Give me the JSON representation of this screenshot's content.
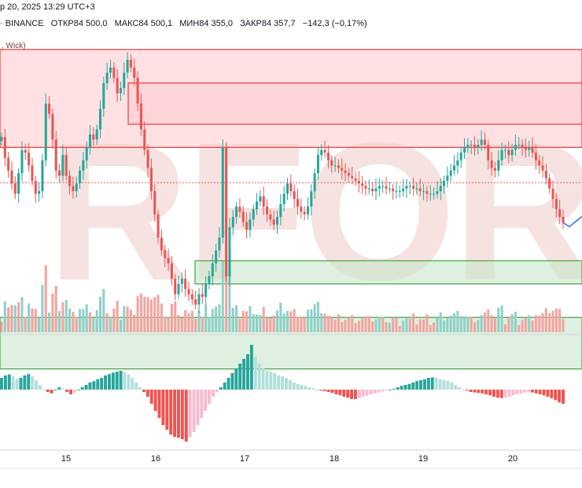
{
  "header": {
    "datetime": "р 20, 2025 13:29 UTC+3",
    "exchange": "· BINANCE",
    "open": "ОТКР84 500,0",
    "high": "МАКС84 500,1",
    "low": "МИН84 355,0",
    "close": "ЗАКР84 357,7",
    "change": "−142,3 (−0,17%)"
  },
  "zone_label": ", Wick)",
  "watermark": "RFOREX.c",
  "colors": {
    "up": "#26a69a",
    "down": "#ef5350",
    "up_vol": "#8fd0c8",
    "down_vol": "#f4a3a1",
    "supply_fill": "#ffcdd2",
    "supply_line": "#e53935",
    "demand_fill": "#c8e6c9",
    "demand_line": "#43a047",
    "projection": "#2962ff",
    "osc_light_down": "#f8bbd0",
    "osc_light_up": "#b2dfdb"
  },
  "chart_data": {
    "type": "candlestick",
    "x_tick_labels": [
      "15",
      "16",
      "17",
      "18",
      "19",
      "20"
    ],
    "last_price": 84357.7,
    "price_ylim": [
      84000,
      85100
    ],
    "closes": [
      84690,
      84610,
      84560,
      84510,
      84470,
      84550,
      84640,
      84630,
      84580,
      84520,
      84470,
      84480,
      84600,
      84820,
      84780,
      84680,
      84560,
      84540,
      84620,
      84540,
      84500,
      84480,
      84510,
      84560,
      84600,
      84650,
      84700,
      84680,
      84720,
      84800,
      84900,
      84940,
      84960,
      84920,
      84860,
      84880,
      84940,
      84990,
      84960,
      84920,
      84820,
      84720,
      84640,
      84570,
      84480,
      84390,
      84300,
      84250,
      84220,
      84200,
      84140,
      84080,
      84120,
      84140,
      84100,
      84080,
      84060,
      84040,
      84080,
      84070,
      84120,
      84150,
      84200,
      84250,
      84300,
      84650,
      84150,
      84340,
      84380,
      84420,
      84400,
      84360,
      84330,
      84370,
      84410,
      84440,
      84460,
      84420,
      84390,
      84370,
      84350,
      84380,
      84430,
      84470,
      84510,
      84480,
      84450,
      84420,
      84400,
      84390,
      84420,
      84480,
      84550,
      84620,
      84640,
      84630,
      84600,
      84580,
      84580,
      84570,
      84560,
      84550,
      84540,
      84530,
      84520,
      84510,
      84500,
      84490,
      84490,
      84480,
      84490,
      84500,
      84500,
      84490,
      84490,
      84480,
      84480,
      84480,
      84490,
      84500,
      84500,
      84490,
      84490,
      84480,
      84480,
      84470,
      84470,
      84470,
      84480,
      84500,
      84520,
      84540,
      84560,
      84580,
      84600,
      84630,
      84650,
      84660,
      84660,
      84650,
      84660,
      84680,
      84660,
      84600,
      84570,
      84560,
      84600,
      84640,
      84640,
      84620,
      84640,
      84660,
      84660,
      84650,
      84640,
      84650,
      84630,
      84600,
      84580,
      84560,
      84530,
      84490,
      84450,
      84410,
      84380,
      84357.7
    ],
    "volume_color_up": [
      0,
      1,
      0,
      0,
      1,
      0,
      1,
      0,
      1,
      0,
      0,
      1,
      1,
      0,
      1,
      0,
      0,
      1,
      0,
      1,
      1,
      0,
      0,
      1,
      1,
      1,
      0,
      1,
      1,
      1,
      1,
      0,
      1,
      0,
      0,
      1,
      1,
      0,
      0,
      0,
      0,
      0,
      0,
      0,
      0,
      0,
      0,
      0,
      0,
      0,
      0,
      0,
      0,
      0,
      0,
      0,
      0,
      0,
      1,
      0,
      1,
      1,
      1,
      1,
      1,
      1,
      0,
      1,
      1,
      1,
      0,
      0,
      0,
      1,
      1,
      1,
      1,
      0,
      0,
      0,
      0,
      1,
      1,
      1,
      1,
      0,
      0,
      0,
      0,
      0,
      1,
      1,
      1,
      1,
      1,
      0,
      0,
      0,
      0,
      0,
      0,
      0,
      0,
      0,
      0,
      0,
      0,
      0,
      0,
      0,
      1,
      1,
      0,
      0,
      1,
      0,
      0,
      0,
      1,
      1,
      0,
      0,
      0,
      0,
      0,
      0,
      0,
      0,
      1,
      1,
      1,
      1,
      1,
      1,
      1,
      1,
      1,
      1,
      0,
      0,
      1,
      1,
      0,
      0,
      0,
      0,
      1,
      1,
      0,
      0,
      1,
      1,
      0,
      0,
      0,
      1,
      0,
      0,
      0,
      0,
      0,
      0,
      0,
      0,
      0,
      0
    ],
    "oscillator": [
      0.25,
      0.3,
      0.32,
      0.28,
      0.22,
      0.25,
      0.3,
      0.33,
      0.28,
      0.2,
      0.1,
      0.0,
      -0.05,
      -0.08,
      0.0,
      0.05,
      0.02,
      -0.05,
      -0.1,
      -0.06,
      0.0,
      0.05,
      0.1,
      0.15,
      0.18,
      0.22,
      0.25,
      0.3,
      0.33,
      0.36,
      0.38,
      0.4,
      0.37,
      0.32,
      0.25,
      0.15,
      0.05,
      -0.05,
      -0.15,
      -0.3,
      -0.45,
      -0.6,
      -0.75,
      -0.85,
      -0.95,
      -1.0,
      -1.02,
      -1.05,
      -1.1,
      -1.0,
      -0.9,
      -0.75,
      -0.6,
      -0.45,
      -0.3,
      -0.15,
      -0.05,
      0.05,
      0.15,
      0.25,
      0.35,
      0.45,
      0.55,
      0.65,
      0.75,
      0.95,
      0.7,
      0.55,
      0.45,
      0.4,
      0.38,
      0.35,
      0.3,
      0.28,
      0.25,
      0.2,
      0.15,
      0.12,
      0.1,
      0.08,
      0.05,
      0.03,
      0.0,
      -0.02,
      -0.03,
      -0.05,
      -0.07,
      -0.1,
      -0.12,
      -0.15,
      -0.17,
      -0.2,
      -0.2,
      -0.18,
      -0.15,
      -0.13,
      -0.1,
      -0.08,
      -0.06,
      -0.04,
      -0.02,
      0.0,
      0.02,
      0.05,
      0.08,
      0.1,
      0.12,
      0.15,
      0.18,
      0.2,
      0.22,
      0.25,
      0.26,
      0.25,
      0.22,
      0.2,
      0.18,
      0.15,
      0.1,
      0.05,
      0.0,
      -0.02,
      -0.05,
      -0.06,
      -0.07,
      -0.08,
      -0.1,
      -0.12,
      -0.15,
      -0.17,
      -0.18,
      -0.17,
      -0.15,
      -0.12,
      -0.1,
      -0.08,
      -0.06,
      -0.05,
      -0.06,
      -0.08,
      -0.1,
      -0.12,
      -0.15,
      -0.18,
      -0.22,
      -0.27,
      -0.3
    ],
    "supply_zones": [
      [
        84650,
        85030
      ],
      [
        84900,
        84740
      ]
    ],
    "demand_zones": [
      [
        84210,
        84120
      ],
      [
        83990,
        83790
      ]
    ]
  }
}
